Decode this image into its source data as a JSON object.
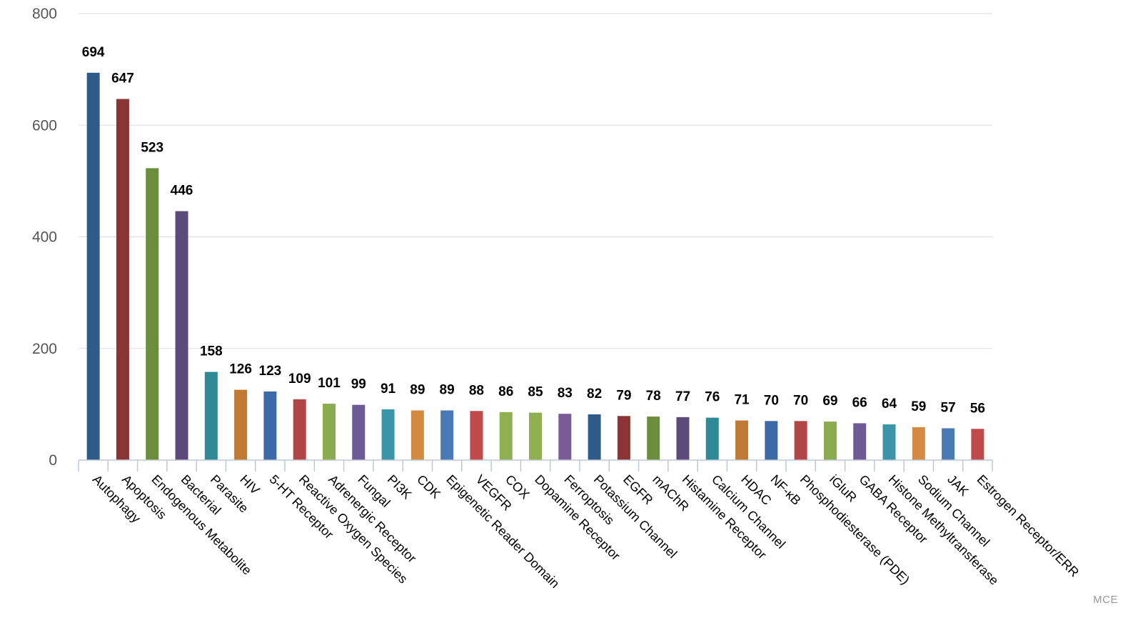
{
  "chart_data": {
    "type": "bar",
    "title": "",
    "xlabel": "",
    "ylabel": "",
    "ylim": [
      0,
      800
    ],
    "yticks": [
      0,
      200,
      400,
      600,
      800
    ],
    "grid": true,
    "legend": "none",
    "categories": [
      "Autophagy",
      "Apoptosis",
      "Endogenous Metabolite",
      "Bacterial",
      "Parasite",
      "HIV",
      "5-HT Receptor",
      "Reactive Oxygen Species",
      "Adrenergic Receptor",
      "Fungal",
      "PI3K",
      "CDK",
      "Epigenetic Reader Domain",
      "VEGFR",
      "COX",
      "Dopamine Receptor",
      "Ferroptosis",
      "Potassium Channel",
      "EGFR",
      "mAChR",
      "Histamine Receptor",
      "Calcium Channel",
      "HDAC",
      "NF-κB",
      "Phosphodiesterase (PDE)",
      "iGluR",
      "GABA Receptor",
      "Histone Methyltransferase",
      "Sodium Channel",
      "JAK",
      "Estrogen Receptor/ERR"
    ],
    "values": [
      694,
      647,
      523,
      446,
      158,
      126,
      123,
      109,
      101,
      99,
      91,
      89,
      89,
      88,
      86,
      85,
      83,
      82,
      79,
      78,
      77,
      76,
      71,
      70,
      70,
      69,
      66,
      64,
      59,
      57,
      56
    ],
    "colors": [
      "#2f5b88",
      "#8b3434",
      "#6b8e3a",
      "#5b4a7a",
      "#2e8a96",
      "#c07a33",
      "#3c6aa6",
      "#b24545",
      "#8aab4e",
      "#6e5a96",
      "#3a95a8",
      "#d48a3f",
      "#4a7ab5",
      "#c04a4a",
      "#8fb050",
      "#8fb050",
      "#7a5c99",
      "#2f5b88",
      "#8b3434",
      "#6b8e3a",
      "#5b4a7a",
      "#2e8a96",
      "#c07a33",
      "#3c6aa6",
      "#b24545",
      "#8aab4e",
      "#6e5a96",
      "#3a95a8",
      "#d48a3f",
      "#4a7ab5",
      "#c04a4a"
    ]
  },
  "credit": "MCE"
}
